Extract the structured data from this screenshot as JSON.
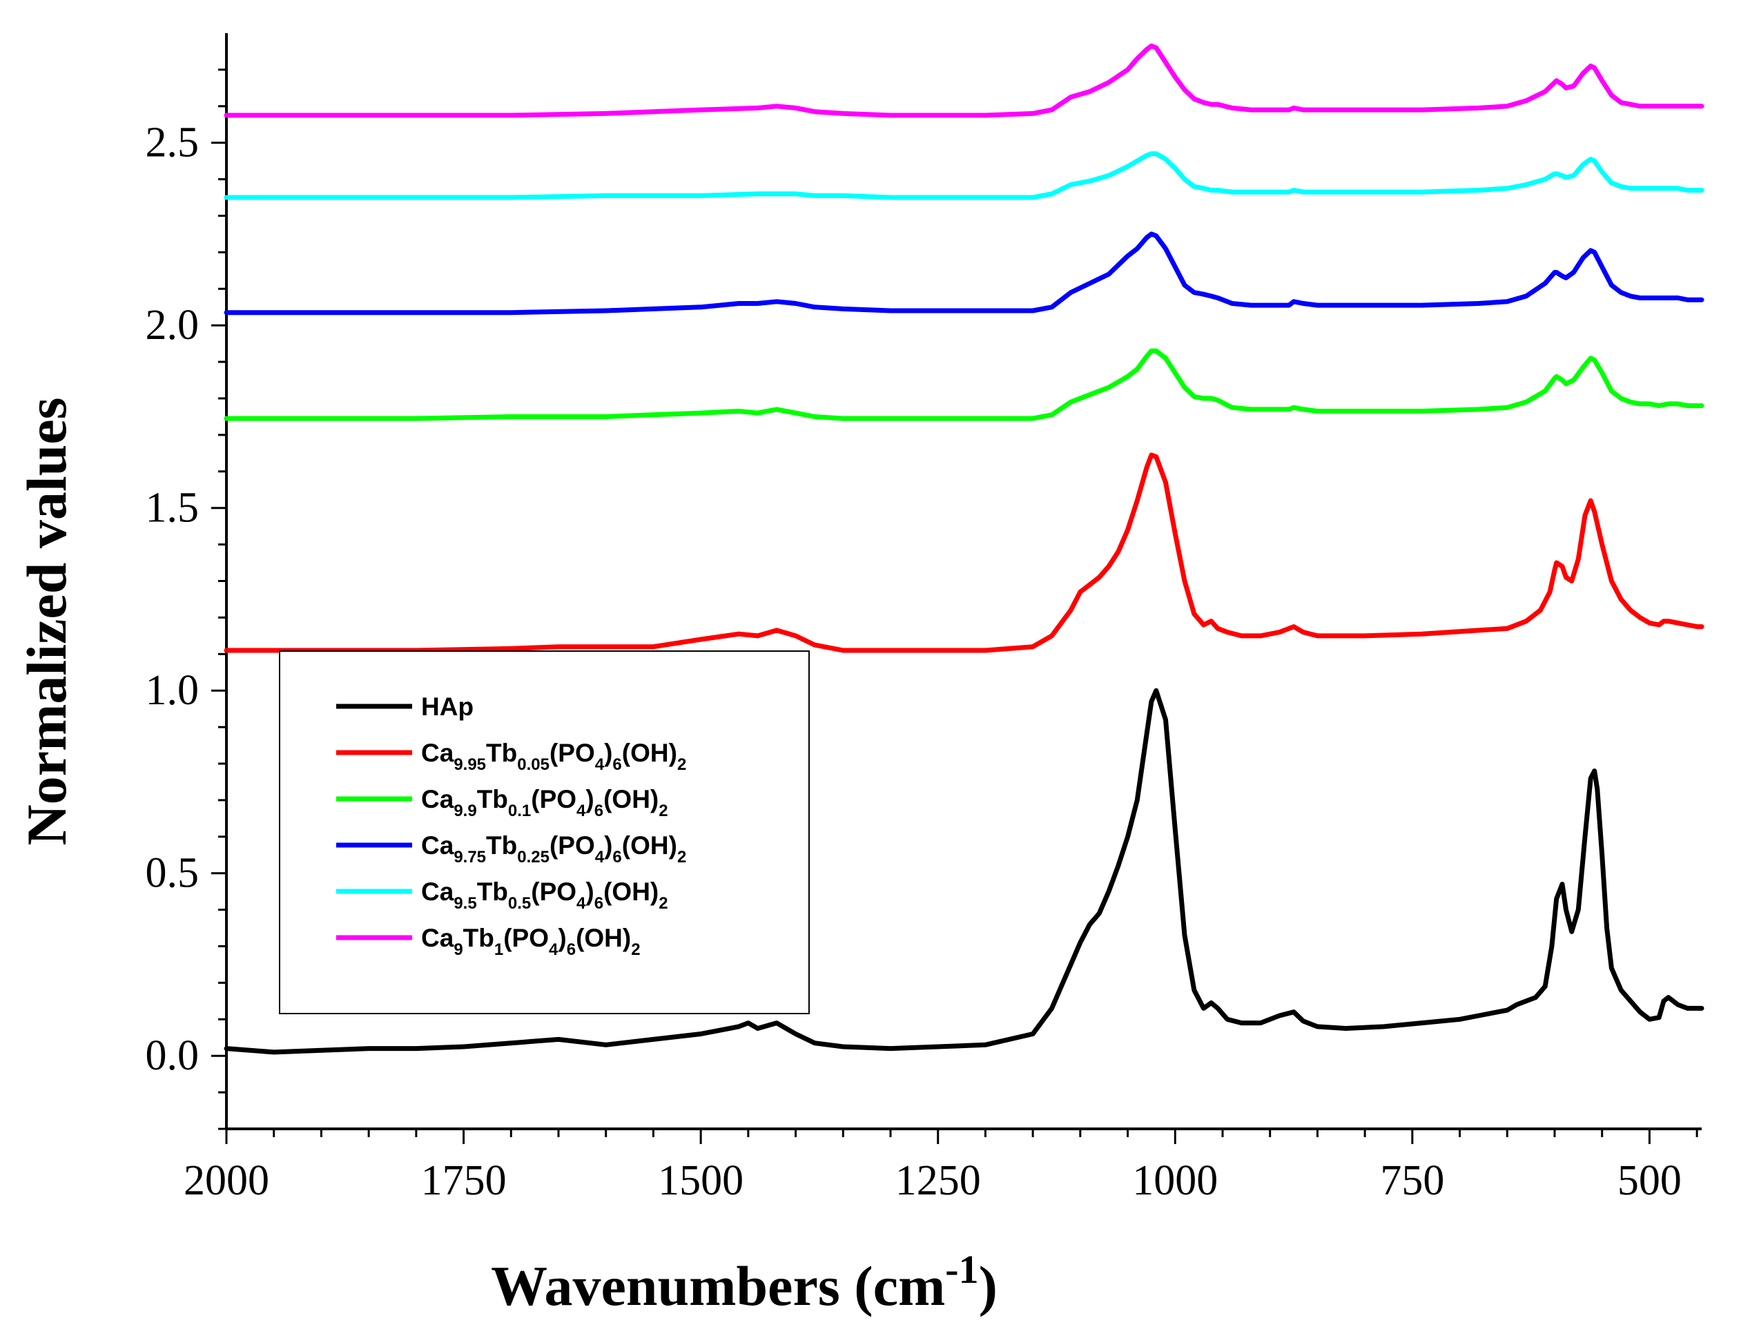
{
  "chart_data": {
    "type": "line",
    "title": "",
    "xlabel": "Wavenumbers",
    "xlabel_unit": "(cm",
    "xlabel_unit_sup": "-1",
    "xlabel_unit_close": ")",
    "ylabel": "Normalized values",
    "xlim": [
      2000,
      445
    ],
    "ylim": [
      -0.2,
      2.8
    ],
    "x_reversed": true,
    "x_ticks": [
      "2000",
      "1750",
      "1500",
      "1250",
      "1000",
      "750",
      "500"
    ],
    "x_tick_values": [
      2000,
      1750,
      1500,
      1250,
      1000,
      750,
      500
    ],
    "y_ticks": [
      "0.0",
      "0.5",
      "1.0",
      "1.5",
      "2.0",
      "2.5"
    ],
    "y_tick_values": [
      0.0,
      0.5,
      1.0,
      1.5,
      2.0,
      2.5
    ],
    "legend_position": "lower-left",
    "series": [
      {
        "name": "HAp",
        "legend": [
          {
            "t": "HAp"
          }
        ],
        "color": "#000000",
        "x": [
          2000,
          1950,
          1900,
          1850,
          1800,
          1750,
          1700,
          1650,
          1600,
          1550,
          1500,
          1460,
          1450,
          1440,
          1420,
          1400,
          1380,
          1350,
          1300,
          1250,
          1200,
          1150,
          1130,
          1110,
          1100,
          1090,
          1080,
          1070,
          1060,
          1050,
          1040,
          1030,
          1025,
          1020,
          1010,
          1000,
          990,
          980,
          970,
          962,
          955,
          945,
          930,
          910,
          890,
          875,
          865,
          850,
          820,
          780,
          740,
          700,
          680,
          650,
          640,
          620,
          610,
          603,
          598,
          592,
          588,
          582,
          575,
          568,
          562,
          558,
          555,
          550,
          545,
          540,
          530,
          520,
          510,
          500,
          490,
          485,
          480,
          470,
          460,
          450,
          445
        ],
        "y": [
          0.02,
          0.01,
          0.015,
          0.02,
          0.02,
          0.025,
          0.035,
          0.045,
          0.03,
          0.045,
          0.06,
          0.08,
          0.09,
          0.075,
          0.09,
          0.06,
          0.035,
          0.025,
          0.02,
          0.025,
          0.03,
          0.06,
          0.13,
          0.25,
          0.31,
          0.36,
          0.39,
          0.45,
          0.52,
          0.6,
          0.7,
          0.88,
          0.97,
          1.0,
          0.92,
          0.62,
          0.33,
          0.18,
          0.13,
          0.145,
          0.13,
          0.1,
          0.09,
          0.09,
          0.11,
          0.12,
          0.095,
          0.08,
          0.075,
          0.08,
          0.09,
          0.1,
          0.11,
          0.125,
          0.14,
          0.16,
          0.19,
          0.3,
          0.43,
          0.47,
          0.4,
          0.34,
          0.4,
          0.6,
          0.76,
          0.78,
          0.73,
          0.55,
          0.35,
          0.24,
          0.18,
          0.15,
          0.12,
          0.1,
          0.105,
          0.15,
          0.16,
          0.14,
          0.13,
          0.13,
          0.13
        ]
      },
      {
        "name": "Ca9.95Tb0.05(PO4)6(OH)2",
        "legend": [
          {
            "t": "Ca"
          },
          {
            "t": "9.95",
            "s": 1
          },
          {
            "t": "Tb"
          },
          {
            "t": "0.05",
            "s": 1
          },
          {
            "t": "(PO"
          },
          {
            "t": "4",
            "s": 1
          },
          {
            "t": ")"
          },
          {
            "t": "6",
            "s": 1
          },
          {
            "t": "(OH)"
          },
          {
            "t": "2",
            "s": 1
          }
        ],
        "color": "#ff0000",
        "x": [
          2000,
          1900,
          1800,
          1700,
          1650,
          1600,
          1550,
          1500,
          1460,
          1440,
          1420,
          1400,
          1380,
          1350,
          1300,
          1250,
          1200,
          1150,
          1130,
          1110,
          1100,
          1090,
          1080,
          1070,
          1060,
          1050,
          1040,
          1030,
          1025,
          1020,
          1010,
          1000,
          990,
          980,
          970,
          962,
          955,
          945,
          930,
          910,
          890,
          875,
          865,
          850,
          800,
          740,
          680,
          650,
          630,
          615,
          605,
          600,
          598,
          592,
          588,
          582,
          575,
          568,
          562,
          558,
          550,
          540,
          530,
          520,
          510,
          500,
          490,
          485,
          480,
          470,
          460,
          450,
          445
        ],
        "y": [
          1.11,
          1.11,
          1.11,
          1.115,
          1.12,
          1.12,
          1.12,
          1.14,
          1.155,
          1.15,
          1.165,
          1.15,
          1.125,
          1.11,
          1.11,
          1.11,
          1.11,
          1.12,
          1.15,
          1.22,
          1.27,
          1.29,
          1.31,
          1.34,
          1.38,
          1.44,
          1.52,
          1.61,
          1.645,
          1.64,
          1.57,
          1.43,
          1.3,
          1.21,
          1.18,
          1.19,
          1.17,
          1.16,
          1.15,
          1.15,
          1.16,
          1.175,
          1.16,
          1.15,
          1.15,
          1.155,
          1.165,
          1.17,
          1.19,
          1.22,
          1.27,
          1.33,
          1.35,
          1.34,
          1.31,
          1.3,
          1.36,
          1.48,
          1.52,
          1.49,
          1.4,
          1.3,
          1.25,
          1.22,
          1.2,
          1.185,
          1.18,
          1.19,
          1.19,
          1.185,
          1.18,
          1.175,
          1.175
        ]
      },
      {
        "name": "Ca9.9Tb0.1(PO4)6(OH)2",
        "legend": [
          {
            "t": "Ca"
          },
          {
            "t": "9.9",
            "s": 1
          },
          {
            "t": "Tb"
          },
          {
            "t": "0.1",
            "s": 1
          },
          {
            "t": "(PO"
          },
          {
            "t": "4",
            "s": 1
          },
          {
            "t": ")"
          },
          {
            "t": "6",
            "s": 1
          },
          {
            "t": "(OH)"
          },
          {
            "t": "2",
            "s": 1
          }
        ],
        "color": "#00ff00",
        "x": [
          2000,
          1900,
          1800,
          1700,
          1600,
          1550,
          1500,
          1460,
          1440,
          1420,
          1400,
          1380,
          1350,
          1300,
          1250,
          1200,
          1150,
          1130,
          1110,
          1090,
          1070,
          1050,
          1040,
          1030,
          1025,
          1020,
          1010,
          1000,
          990,
          980,
          970,
          962,
          955,
          940,
          920,
          900,
          880,
          875,
          865,
          850,
          800,
          740,
          680,
          650,
          630,
          610,
          600,
          598,
          592,
          588,
          580,
          570,
          562,
          558,
          550,
          540,
          530,
          520,
          510,
          500,
          490,
          480,
          470,
          460,
          450,
          445
        ],
        "y": [
          1.745,
          1.745,
          1.745,
          1.75,
          1.75,
          1.755,
          1.76,
          1.765,
          1.76,
          1.77,
          1.76,
          1.75,
          1.745,
          1.745,
          1.745,
          1.745,
          1.745,
          1.755,
          1.79,
          1.81,
          1.83,
          1.86,
          1.88,
          1.915,
          1.93,
          1.93,
          1.91,
          1.87,
          1.83,
          1.805,
          1.8,
          1.8,
          1.795,
          1.775,
          1.77,
          1.77,
          1.77,
          1.775,
          1.77,
          1.765,
          1.765,
          1.765,
          1.77,
          1.775,
          1.79,
          1.82,
          1.855,
          1.86,
          1.85,
          1.84,
          1.85,
          1.885,
          1.91,
          1.905,
          1.87,
          1.82,
          1.8,
          1.79,
          1.785,
          1.785,
          1.78,
          1.785,
          1.785,
          1.78,
          1.78,
          1.78
        ]
      },
      {
        "name": "Ca9.75Tb0.25(PO4)6(OH)2",
        "legend": [
          {
            "t": "Ca"
          },
          {
            "t": "9.75",
            "s": 1
          },
          {
            "t": "Tb"
          },
          {
            "t": "0.25",
            "s": 1
          },
          {
            "t": "(PO"
          },
          {
            "t": "4",
            "s": 1
          },
          {
            "t": ")"
          },
          {
            "t": "6",
            "s": 1
          },
          {
            "t": "(OH)"
          },
          {
            "t": "2",
            "s": 1
          }
        ],
        "color": "#0000ff",
        "x": [
          2000,
          1900,
          1800,
          1700,
          1600,
          1550,
          1500,
          1460,
          1440,
          1420,
          1400,
          1380,
          1350,
          1300,
          1250,
          1200,
          1150,
          1130,
          1110,
          1090,
          1070,
          1050,
          1040,
          1030,
          1025,
          1020,
          1010,
          1000,
          990,
          980,
          970,
          962,
          955,
          940,
          920,
          900,
          880,
          875,
          865,
          850,
          800,
          740,
          680,
          650,
          630,
          610,
          600,
          598,
          592,
          588,
          580,
          570,
          562,
          558,
          550,
          540,
          530,
          520,
          510,
          500,
          490,
          480,
          470,
          460,
          450,
          445
        ],
        "y": [
          2.035,
          2.035,
          2.035,
          2.035,
          2.04,
          2.045,
          2.05,
          2.06,
          2.06,
          2.065,
          2.06,
          2.05,
          2.045,
          2.04,
          2.04,
          2.04,
          2.04,
          2.05,
          2.09,
          2.115,
          2.14,
          2.19,
          2.21,
          2.24,
          2.25,
          2.245,
          2.21,
          2.16,
          2.11,
          2.09,
          2.085,
          2.08,
          2.075,
          2.06,
          2.055,
          2.055,
          2.055,
          2.065,
          2.06,
          2.055,
          2.055,
          2.055,
          2.06,
          2.065,
          2.08,
          2.115,
          2.145,
          2.145,
          2.135,
          2.13,
          2.145,
          2.185,
          2.205,
          2.2,
          2.16,
          2.11,
          2.09,
          2.08,
          2.075,
          2.075,
          2.075,
          2.075,
          2.075,
          2.07,
          2.07,
          2.07
        ]
      },
      {
        "name": "Ca9.5Tb0.5(PO4)6(OH)2",
        "legend": [
          {
            "t": "Ca"
          },
          {
            "t": "9.5",
            "s": 1
          },
          {
            "t": "Tb"
          },
          {
            "t": "0.5",
            "s": 1
          },
          {
            "t": "(PO"
          },
          {
            "t": "4",
            "s": 1
          },
          {
            "t": ")"
          },
          {
            "t": "6",
            "s": 1
          },
          {
            "t": "(OH)"
          },
          {
            "t": "2",
            "s": 1
          }
        ],
        "color": "#00ffff",
        "x": [
          2000,
          1900,
          1800,
          1700,
          1600,
          1500,
          1440,
          1420,
          1400,
          1380,
          1350,
          1300,
          1250,
          1200,
          1150,
          1130,
          1110,
          1090,
          1070,
          1050,
          1040,
          1030,
          1025,
          1020,
          1010,
          1000,
          990,
          980,
          970,
          962,
          955,
          940,
          920,
          900,
          880,
          875,
          865,
          850,
          800,
          740,
          680,
          650,
          630,
          610,
          600,
          598,
          592,
          588,
          580,
          570,
          562,
          558,
          550,
          540,
          530,
          520,
          510,
          500,
          490,
          480,
          470,
          460,
          450,
          445
        ],
        "y": [
          2.35,
          2.35,
          2.35,
          2.35,
          2.355,
          2.355,
          2.36,
          2.36,
          2.36,
          2.355,
          2.355,
          2.35,
          2.35,
          2.35,
          2.35,
          2.36,
          2.385,
          2.395,
          2.41,
          2.435,
          2.45,
          2.465,
          2.47,
          2.47,
          2.455,
          2.43,
          2.4,
          2.38,
          2.375,
          2.37,
          2.37,
          2.365,
          2.365,
          2.365,
          2.365,
          2.37,
          2.365,
          2.365,
          2.365,
          2.365,
          2.37,
          2.375,
          2.385,
          2.4,
          2.415,
          2.415,
          2.41,
          2.405,
          2.41,
          2.44,
          2.455,
          2.45,
          2.42,
          2.39,
          2.38,
          2.375,
          2.375,
          2.375,
          2.375,
          2.375,
          2.375,
          2.37,
          2.37,
          2.37
        ]
      },
      {
        "name": "Ca9Tb1(PO4)6(OH)2",
        "legend": [
          {
            "t": "Ca"
          },
          {
            "t": "9",
            "s": 1
          },
          {
            "t": "Tb"
          },
          {
            "t": "1",
            "s": 1
          },
          {
            "t": "(PO"
          },
          {
            "t": "4",
            "s": 1
          },
          {
            "t": ")"
          },
          {
            "t": "6",
            "s": 1
          },
          {
            "t": "(OH)"
          },
          {
            "t": "2",
            "s": 1
          }
        ],
        "color": "#ff00ff",
        "x": [
          2000,
          1900,
          1800,
          1700,
          1600,
          1550,
          1500,
          1440,
          1420,
          1400,
          1380,
          1350,
          1300,
          1250,
          1200,
          1150,
          1130,
          1110,
          1090,
          1070,
          1050,
          1040,
          1030,
          1025,
          1020,
          1010,
          1000,
          990,
          980,
          970,
          962,
          955,
          940,
          920,
          900,
          880,
          875,
          865,
          850,
          800,
          740,
          680,
          650,
          630,
          610,
          600,
          598,
          592,
          588,
          580,
          570,
          562,
          558,
          550,
          540,
          530,
          520,
          510,
          500,
          490,
          480,
          470,
          460,
          450,
          445
        ],
        "y": [
          2.575,
          2.575,
          2.575,
          2.575,
          2.58,
          2.585,
          2.59,
          2.595,
          2.6,
          2.595,
          2.585,
          2.58,
          2.575,
          2.575,
          2.575,
          2.58,
          2.59,
          2.625,
          2.64,
          2.665,
          2.7,
          2.73,
          2.755,
          2.765,
          2.76,
          2.72,
          2.68,
          2.645,
          2.62,
          2.61,
          2.605,
          2.605,
          2.595,
          2.59,
          2.59,
          2.59,
          2.595,
          2.59,
          2.59,
          2.59,
          2.59,
          2.595,
          2.6,
          2.615,
          2.64,
          2.665,
          2.67,
          2.66,
          2.65,
          2.655,
          2.69,
          2.71,
          2.705,
          2.67,
          2.63,
          2.61,
          2.605,
          2.6,
          2.6,
          2.6,
          2.6,
          2.6,
          2.6,
          2.6,
          2.6
        ]
      }
    ]
  }
}
